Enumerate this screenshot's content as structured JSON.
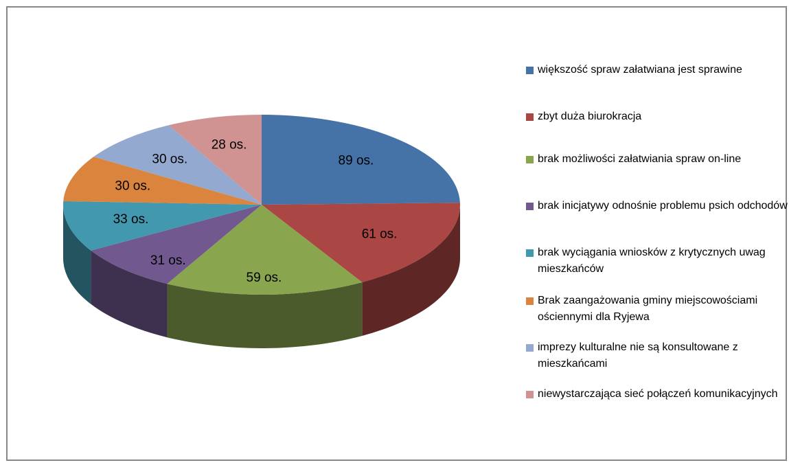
{
  "chart_data": {
    "type": "pie3d",
    "categories": [
      "większość spraw załatwiana jest sprawine",
      "zbyt duża biurokracja",
      "brak możliwości załatwiania spraw on-line",
      "brak inicjatywy odnośnie problemu psich odchodów",
      "brak wyciągania wniosków z krytycznych uwag mieszkańców",
      "Brak zaangażowania gminy miejscowościami ościennymi dla Ryjewa",
      "imprezy kulturalne nie są konsultowane z mieszkańcami",
      "niewystarczająca sieć połączeń komunikacyjnych"
    ],
    "values": [
      89,
      61,
      59,
      31,
      33,
      30,
      30,
      28
    ],
    "value_labels": [
      "89 os.",
      "61 os.",
      "59 os.",
      "31 os.",
      "33 os.",
      "30 os.",
      "30 os.",
      "28 os."
    ],
    "colors": [
      "#4572a7",
      "#aa4643",
      "#89a54e",
      "#71588f",
      "#4198af",
      "#db843d",
      "#93a9cf",
      "#d19392"
    ],
    "legend": "right"
  }
}
